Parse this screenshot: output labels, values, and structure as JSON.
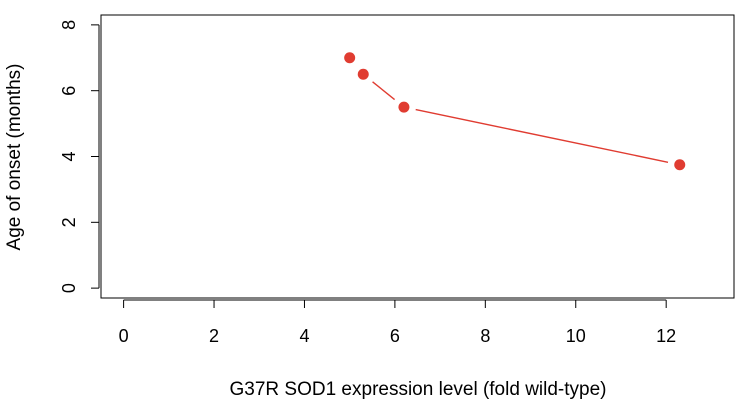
{
  "chart_data": {
    "type": "line",
    "title": "",
    "xlabel": "G37R SOD1 expression level (fold wild-type)",
    "ylabel": "Age of onset (months)",
    "xlim": [
      -0.5,
      13.5
    ],
    "ylim": [
      -0.3,
      8.3
    ],
    "xticks": [
      0,
      2,
      4,
      6,
      8,
      10,
      12
    ],
    "yticks": [
      0,
      2,
      4,
      6,
      8
    ],
    "grid": false,
    "legend": "none",
    "series": [
      {
        "color": "#e03c31",
        "x": [
          5.0,
          5.3,
          6.2,
          12.3
        ],
        "y": [
          7.0,
          6.5,
          5.5,
          3.75
        ]
      }
    ]
  }
}
